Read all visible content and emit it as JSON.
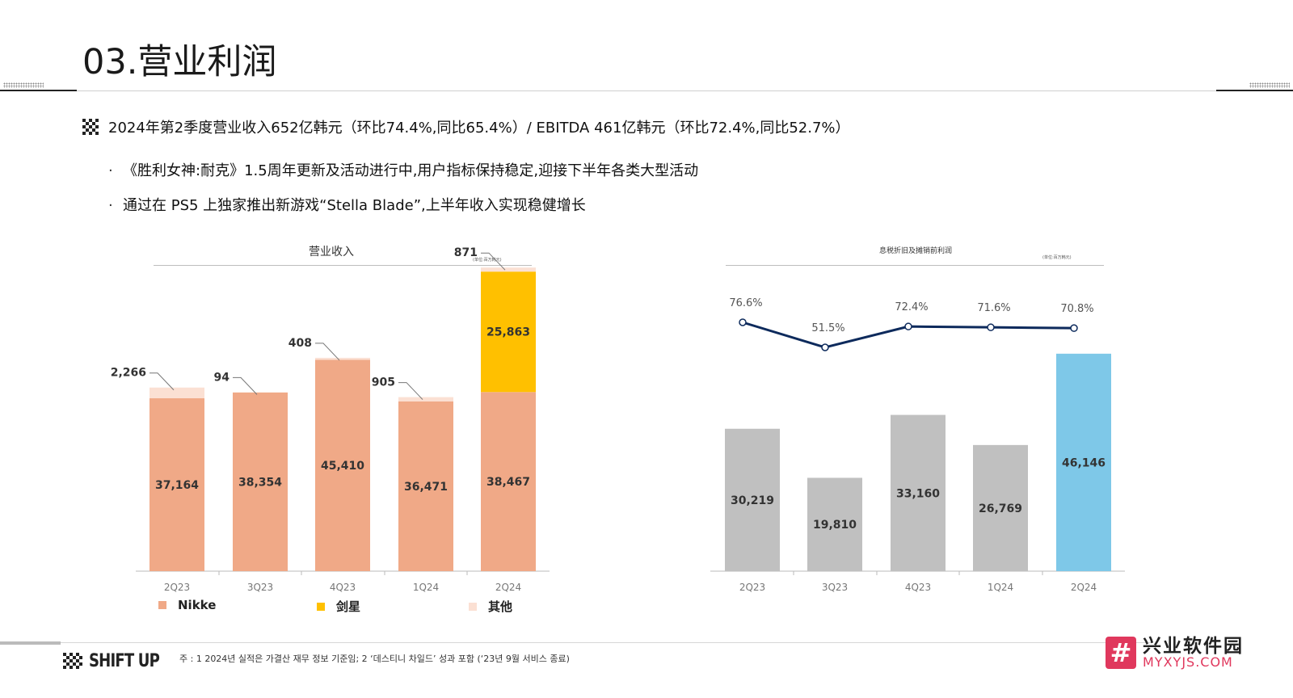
{
  "page": {
    "title": "03.营业利润",
    "headline": "2024年第2季度营业收入652亿韩元（环比74.4%,同比65.4%）/ EBITDA 461亿韩元（环比72.4%,同比52.7%）",
    "bullets": [
      "《胜利女神:耐克》1.5周年更新及活动进行中,用户指标保持稳定,迎接下半年各类大型活动",
      "通过在 PS5 上独家推出新游戏“Stella Blade”,上半年收入实现稳健增长"
    ],
    "footnote": "주 : 1 2024년 실적은 가결산 재무 정보 기준임; 2 ‘데스티니 차일드’ 성과 포함 (‘23년 9월 서비스 종료)",
    "logo_text": "SHIFT UP",
    "watermark": {
      "cn": "兴业软件园",
      "en": "MYXYJS.COM",
      "glyph": "#"
    }
  },
  "chart_data": [
    {
      "type": "bar",
      "stacked": true,
      "title": "营业收入",
      "unit_note": "(单位:百万韩元)",
      "categories": [
        "2Q23",
        "3Q23",
        "4Q23",
        "1Q24",
        "2Q24"
      ],
      "series": [
        {
          "name": "Nikke",
          "values": [
            37164,
            38354,
            45410,
            36471,
            38467
          ],
          "color": "#f0a987"
        },
        {
          "name": "剑星",
          "values": [
            0,
            0,
            0,
            0,
            25863
          ],
          "color": "#ffc000"
        },
        {
          "name": "其他",
          "values": [
            2266,
            94,
            408,
            905,
            871
          ],
          "color": "#fbe0d3"
        }
      ],
      "data_labels": {
        "Nikke": [
          "37,164",
          "38,354",
          "45,410",
          "36,471",
          "38,467"
        ],
        "剑星": [
          "",
          "",
          "",
          "",
          "25,863"
        ],
        "其他": [
          "2,266",
          "94",
          "408",
          "905",
          "871"
        ]
      },
      "ylim": [
        0,
        72000
      ],
      "legend_position": "bottom",
      "grid": false
    },
    {
      "type": "bar+line",
      "title": "息税折旧及摊销前利润",
      "unit_note": "(单位:百万韩元)",
      "categories": [
        "2Q23",
        "3Q23",
        "4Q23",
        "1Q24",
        "2Q24"
      ],
      "values": [
        30219,
        19810,
        33160,
        26769,
        46146
      ],
      "value_labels": [
        "30,219",
        "19,810",
        "33,160",
        "26,769",
        "46,146"
      ],
      "bar_colors": [
        "#c0c0c0",
        "#c0c0c0",
        "#c0c0c0",
        "#c0c0c0",
        "#7ec8e8"
      ],
      "margin_pct": [
        76.6,
        51.5,
        72.4,
        71.6,
        70.8
      ],
      "margin_labels": [
        "76.6%",
        "51.5%",
        "72.4%",
        "71.6%",
        "70.8%"
      ],
      "line_color": "#0d2a5c",
      "ylim": [
        0,
        60000
      ],
      "grid": false
    }
  ]
}
